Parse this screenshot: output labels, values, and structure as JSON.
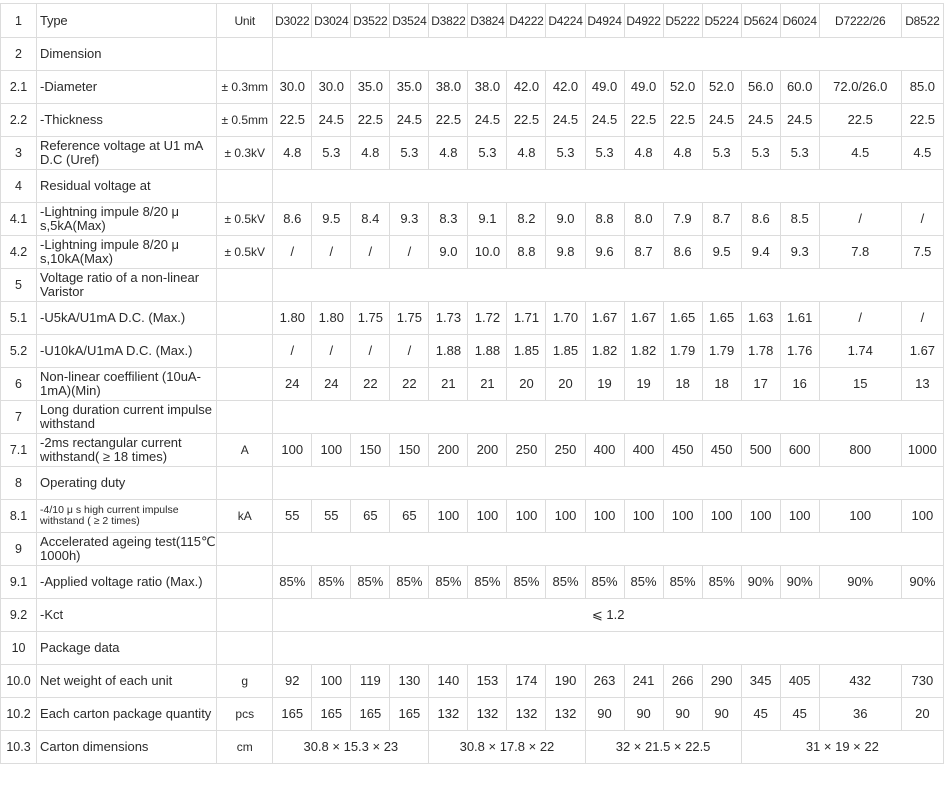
{
  "header": {
    "num": "1",
    "type": "Type",
    "unit": "Unit",
    "models": [
      "D3022",
      "D3024",
      "D3522",
      "D3524",
      "D3822",
      "D3824",
      "D4222",
      "D4224",
      "D4924",
      "D4922",
      "D5222",
      "D5224",
      "D5624",
      "D6024",
      "D7222/26",
      "D8522"
    ]
  },
  "rows": [
    {
      "num": "2",
      "desc": "Dimension",
      "unit": "",
      "values": []
    },
    {
      "num": "2.1",
      "desc": "-Diameter",
      "unit": "± 0.3mm",
      "values": [
        "30.0",
        "30.0",
        "35.0",
        "35.0",
        "38.0",
        "38.0",
        "42.0",
        "42.0",
        "49.0",
        "49.0",
        "52.0",
        "52.0",
        "56.0",
        "60.0",
        "72.0/26.0",
        "85.0"
      ]
    },
    {
      "num": "2.2",
      "desc": "-Thickness",
      "unit": "± 0.5mm",
      "values": [
        "22.5",
        "24.5",
        "22.5",
        "24.5",
        "22.5",
        "24.5",
        "22.5",
        "24.5",
        "24.5",
        "22.5",
        "22.5",
        "24.5",
        "24.5",
        "24.5",
        "22.5",
        "22.5"
      ]
    },
    {
      "num": "3",
      "desc": "Reference voltage at U1 mA D.C (Uref)",
      "unit": "± 0.3kV",
      "values": [
        "4.8",
        "5.3",
        "4.8",
        "5.3",
        "4.8",
        "5.3",
        "4.8",
        "5.3",
        "5.3",
        "4.8",
        "4.8",
        "5.3",
        "5.3",
        "5.3",
        "4.5",
        "4.5"
      ]
    },
    {
      "num": "4",
      "desc": "Residual voltage at",
      "unit": "",
      "values": []
    },
    {
      "num": "4.1",
      "desc": "-Lightning impule 8/20 μ s,5kA(Max)",
      "unit": "± 0.5kV",
      "values": [
        "8.6",
        "9.5",
        "8.4",
        "9.3",
        "8.3",
        "9.1",
        "8.2",
        "9.0",
        "8.8",
        "8.0",
        "7.9",
        "8.7",
        "8.6",
        "8.5",
        "/",
        "/"
      ]
    },
    {
      "num": "4.2",
      "desc": "-Lightning impule 8/20 μ s,10kA(Max)",
      "unit": "± 0.5kV",
      "values": [
        "/",
        "/",
        "/",
        "/",
        "9.0",
        "10.0",
        "8.8",
        "9.8",
        "9.6",
        "8.7",
        "8.6",
        "9.5",
        "9.4",
        "9.3",
        "7.8",
        "7.5"
      ]
    },
    {
      "num": "5",
      "desc": "Voltage ratio of a non-linear Varistor",
      "unit": "",
      "values": []
    },
    {
      "num": "5.1",
      "desc": "-U5kA/U1mA D.C. (Max.)",
      "unit": "",
      "values": [
        "1.80",
        "1.80",
        "1.75",
        "1.75",
        "1.73",
        "1.72",
        "1.71",
        "1.70",
        "1.67",
        "1.67",
        "1.65",
        "1.65",
        "1.63",
        "1.61",
        "/",
        "/"
      ]
    },
    {
      "num": "5.2",
      "desc": "-U10kA/U1mA D.C. (Max.)",
      "unit": "",
      "values": [
        "/",
        "/",
        "/",
        "/",
        "1.88",
        "1.88",
        "1.85",
        "1.85",
        "1.82",
        "1.82",
        "1.79",
        "1.79",
        "1.78",
        "1.76",
        "1.74",
        "1.67"
      ]
    },
    {
      "num": "6",
      "desc": "Non-linear coeffilient (10uA-1mA)(Min)",
      "unit": "",
      "values": [
        "24",
        "24",
        "22",
        "22",
        "21",
        "21",
        "20",
        "20",
        "19",
        "19",
        "18",
        "18",
        "17",
        "16",
        "15",
        "13"
      ]
    },
    {
      "num": "7",
      "desc": "Long duration current impulse withstand",
      "unit": "",
      "values": []
    },
    {
      "num": "7.1",
      "desc": "-2ms rectangular current withstand( ≥ 18 times)",
      "unit": "A",
      "values": [
        "100",
        "100",
        "150",
        "150",
        "200",
        "200",
        "250",
        "250",
        "400",
        "400",
        "450",
        "450",
        "500",
        "600",
        "800",
        "1000"
      ]
    },
    {
      "num": "8",
      "desc": "Operating duty",
      "unit": "",
      "values": []
    },
    {
      "num": "8.1",
      "desc": "-4/10 μ s high current impulse withstand ( ≥ 2 times)",
      "unit": "kA",
      "values": [
        "55",
        "55",
        "65",
        "65",
        "100",
        "100",
        "100",
        "100",
        "100",
        "100",
        "100",
        "100",
        "100",
        "100",
        "100",
        "100"
      ]
    },
    {
      "num": "9",
      "desc": "Accelerated ageing test(115℃ 1000h)",
      "unit": "",
      "values": []
    },
    {
      "num": "9.1",
      "desc": "-Applied voltage ratio (Max.)",
      "unit": "",
      "values": [
        "85%",
        "85%",
        "85%",
        "85%",
        "85%",
        "85%",
        "85%",
        "85%",
        "85%",
        "85%",
        "85%",
        "85%",
        "90%",
        "90%",
        "90%",
        "90%"
      ]
    },
    {
      "num": "9.2",
      "desc": "-Kct",
      "unit": "",
      "span_value": "⩽ 1.2"
    },
    {
      "num": "10",
      "desc": "Package data",
      "unit": "",
      "values": []
    },
    {
      "num": "10.0",
      "desc": "Net weight of each unit",
      "unit": "g",
      "values": [
        "92",
        "100",
        "119",
        "130",
        "140",
        "153",
        "174",
        "190",
        "263",
        "241",
        "266",
        "290",
        "345",
        "405",
        "432",
        "730"
      ]
    },
    {
      "num": "10.2",
      "desc": "Each carton package quantity",
      "unit": "pcs",
      "values": [
        "165",
        "165",
        "165",
        "165",
        "132",
        "132",
        "132",
        "132",
        "90",
        "90",
        "90",
        "90",
        "45",
        "45",
        "36",
        "20"
      ]
    },
    {
      "num": "10.3",
      "desc": "Carton dimensions",
      "unit": "cm",
      "groups": [
        {
          "span": 4,
          "text": "30.8 × 15.3 × 23"
        },
        {
          "span": 4,
          "text": "30.8 × 17.8 × 22"
        },
        {
          "span": 4,
          "text": "32 × 21.5 × 22.5"
        },
        {
          "span": 4,
          "text": "31 × 19 × 22"
        }
      ]
    }
  ]
}
